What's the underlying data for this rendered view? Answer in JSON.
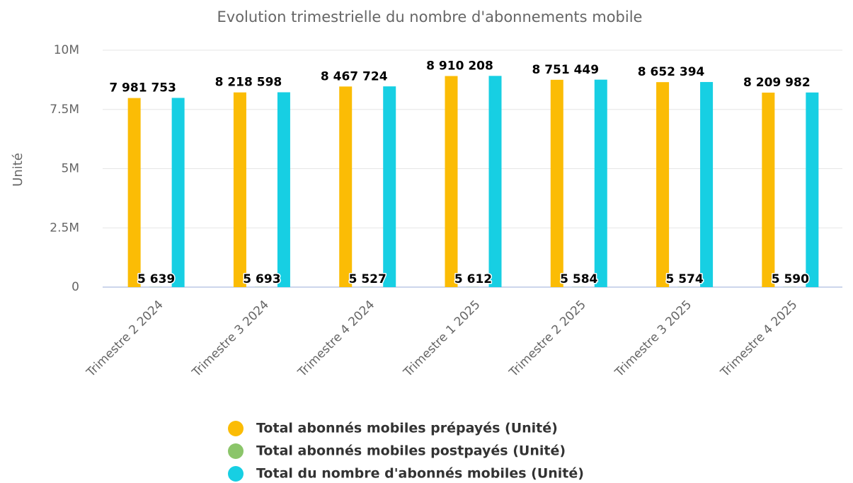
{
  "chart_data": {
    "type": "bar",
    "title": "Evolution trimestrielle du nombre d'abonnements mobile",
    "y_label": "Unité",
    "categories": [
      "Trimestre 2 2024",
      "Trimestre 3 2024",
      "Trimestre 4 2024",
      "Trimestre 1 2025",
      "Trimestre 2 2025",
      "Trimestre 3 2025",
      "Trimestre 4 2025"
    ],
    "series": [
      {
        "name": "Total abonnés mobiles prépayés (Unité)",
        "color": "#fbbc05",
        "values": [
          7981753,
          8218598,
          8467724,
          8910208,
          8751449,
          8652394,
          8209982
        ],
        "value_labels": [
          "7 981 753",
          "8 218 598",
          "8 467 724",
          "8 910 208",
          "8 751 449",
          "8 652 394",
          "8 209 982"
        ]
      },
      {
        "name": "Total abonnés mobiles postpayés (Unité)",
        "color": "#8bc56a",
        "values": [
          5639,
          5693,
          5527,
          5612,
          5584,
          5574,
          5590
        ],
        "value_labels": [
          "5 639",
          "5 693",
          "5 527",
          "5 612",
          "5 584",
          "5 574",
          "5 590"
        ]
      },
      {
        "name": "Total du nombre d'abonnés mobiles (Unité)",
        "color": "#17cfe3",
        "values": [
          7987392,
          8224291,
          8473251,
          8915820,
          8757033,
          8657968,
          8215572
        ]
      }
    ],
    "ylim": [
      0,
      10000000
    ],
    "yticks": [
      {
        "value": 0,
        "label": "0"
      },
      {
        "value": 2500000,
        "label": "2.5M"
      },
      {
        "value": 5000000,
        "label": "5M"
      },
      {
        "value": 7500000,
        "label": "7.5M"
      },
      {
        "value": 10000000,
        "label": "10M"
      }
    ],
    "grid": true
  }
}
